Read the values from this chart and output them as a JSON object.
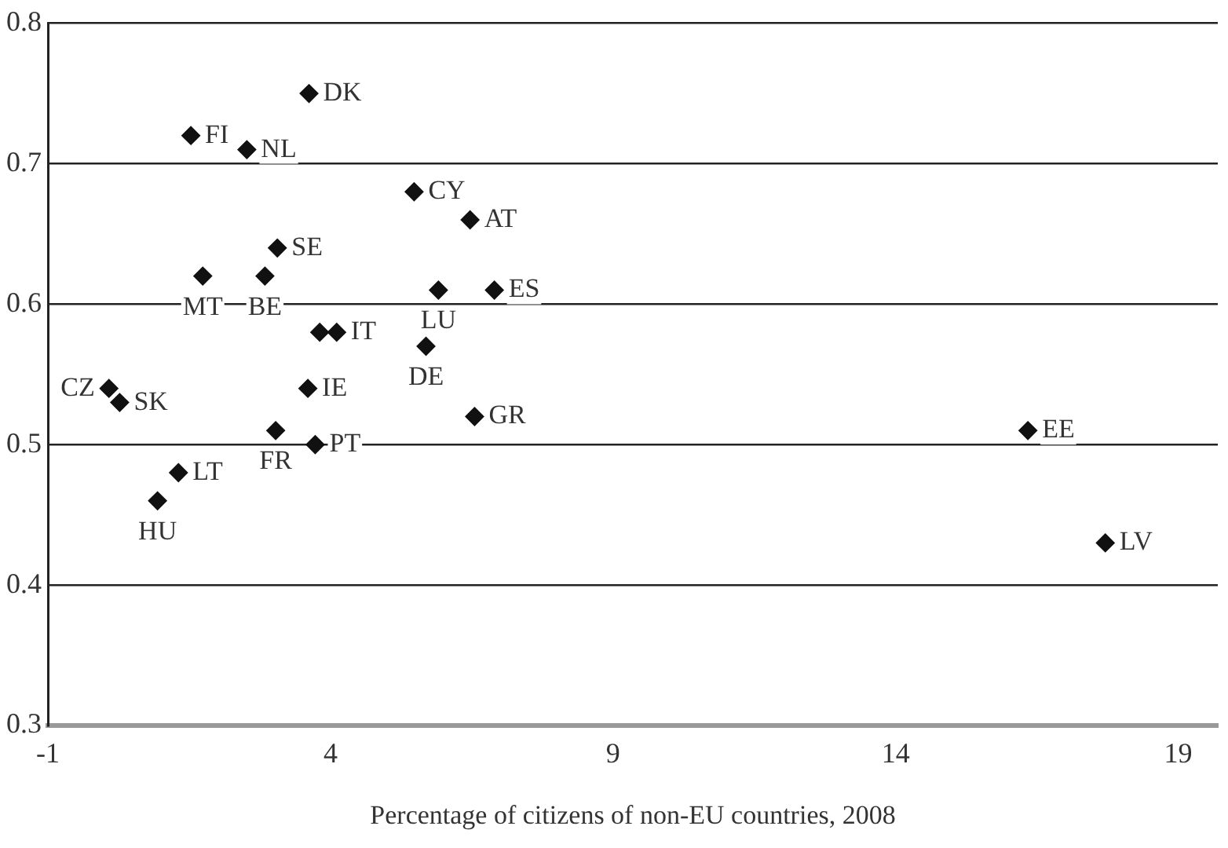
{
  "chart_data": {
    "type": "scatter",
    "xlabel": "Percentage of citizens of non-EU countries, 2008",
    "marker": "diamond",
    "grid": "y",
    "legend": false,
    "xlim": [
      -1,
      19.7
    ],
    "xticks": [
      -1,
      4,
      9,
      14,
      19
    ],
    "ylim": [
      0.3,
      0.8
    ],
    "yticks": [
      0.3,
      0.4,
      0.5,
      0.6,
      0.7,
      0.8
    ],
    "series": [
      {
        "color": "#111111",
        "x": [
          3.62,
          1.53,
          2.52,
          5.48,
          6.47,
          3.06,
          1.74,
          2.84,
          5.91,
          6.9,
          3.81,
          4.11,
          5.69,
          3.6,
          0.08,
          0.27,
          6.55,
          3.03,
          3.73,
          1.31,
          0.94,
          16.34,
          17.71
        ],
        "values": [
          0.75,
          0.72,
          0.71,
          0.68,
          0.66,
          0.64,
          0.62,
          0.62,
          0.61,
          0.61,
          0.58,
          0.58,
          0.57,
          0.54,
          0.54,
          0.53,
          0.52,
          0.51,
          0.5,
          0.48,
          0.46,
          0.51,
          0.43
        ]
      }
    ],
    "annotations": [
      {
        "text": "DK",
        "x": 3.62,
        "y": 0.75
      },
      {
        "text": "FI",
        "x": 1.53,
        "y": 0.72
      },
      {
        "text": "NL",
        "x": 2.52,
        "y": 0.71
      },
      {
        "text": "CY",
        "x": 5.48,
        "y": 0.68
      },
      {
        "text": "AT",
        "x": 6.47,
        "y": 0.66
      },
      {
        "text": "SE",
        "x": 3.06,
        "y": 0.64
      },
      {
        "text": "MT",
        "x": 1.74,
        "y": 0.62
      },
      {
        "text": "BE",
        "x": 2.84,
        "y": 0.62
      },
      {
        "text": "LU",
        "x": 5.91,
        "y": 0.61
      },
      {
        "text": "ES",
        "x": 6.9,
        "y": 0.61
      },
      {
        "text": "IT",
        "x": 4.11,
        "y": 0.58
      },
      {
        "text": "DE",
        "x": 5.69,
        "y": 0.57
      },
      {
        "text": "IE",
        "x": 3.6,
        "y": 0.54
      },
      {
        "text": "CZ",
        "x": 0.08,
        "y": 0.54
      },
      {
        "text": "SK",
        "x": 0.27,
        "y": 0.53
      },
      {
        "text": "GR",
        "x": 6.55,
        "y": 0.52
      },
      {
        "text": "FR",
        "x": 3.03,
        "y": 0.51
      },
      {
        "text": "PT",
        "x": 3.73,
        "y": 0.5
      },
      {
        "text": "LT",
        "x": 1.31,
        "y": 0.48
      },
      {
        "text": "HU",
        "x": 0.94,
        "y": 0.46
      },
      {
        "text": "EE",
        "x": 16.34,
        "y": 0.51
      },
      {
        "text": "LV",
        "x": 17.71,
        "y": 0.43
      }
    ]
  }
}
